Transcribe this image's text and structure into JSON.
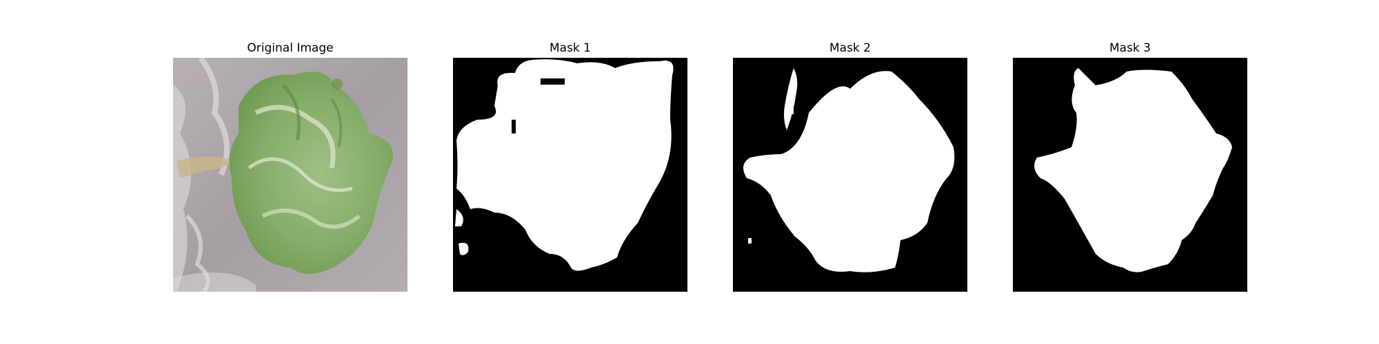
{
  "panels": [
    {
      "title": "Original Image",
      "kind": "photo"
    },
    {
      "title": "Mask 1",
      "kind": "mask"
    },
    {
      "title": "Mask 2",
      "kind": "mask"
    },
    {
      "title": "Mask 3",
      "kind": "mask"
    }
  ],
  "colors": {
    "mask_background": "#000000",
    "mask_foreground": "#ffffff",
    "photo_background": "#aaa4a8",
    "photo_region": "#8fb57a",
    "photo_region_dark": "#6f9a52",
    "photo_highlight": "#dfe8cf"
  }
}
